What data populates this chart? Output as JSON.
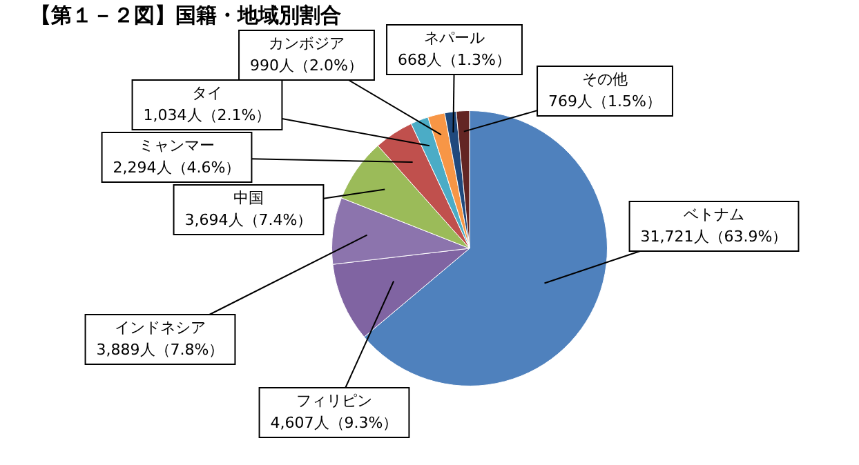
{
  "chart_data": {
    "type": "pie",
    "title": "【第１－２図】国籍・地域別割合",
    "categories": [
      "ベトナム",
      "フィリピン",
      "インドネシア",
      "中国",
      "ミャンマー",
      "タイ",
      "カンボジア",
      "ネパール",
      "その他"
    ],
    "values": [
      31721,
      4607,
      3889,
      3694,
      2294,
      1034,
      990,
      668,
      769
    ],
    "colors": [
      "#4f81bd",
      "#8064a2",
      "#8c74ad",
      "#9bbb59",
      "#c0504d",
      "#4bacc6",
      "#f79646",
      "#1f497d",
      "#632523"
    ],
    "value_labels": [
      "31,721人（63.9%）",
      "4,607人（9.3%）",
      "3,889人（7.8%）",
      "3,694人（7.4%）",
      "2,294人（4.6%）",
      "1,034人（2.1%）",
      "990人（2.0%）",
      "668人（1.3%）",
      "769人（1.5%）"
    ]
  }
}
